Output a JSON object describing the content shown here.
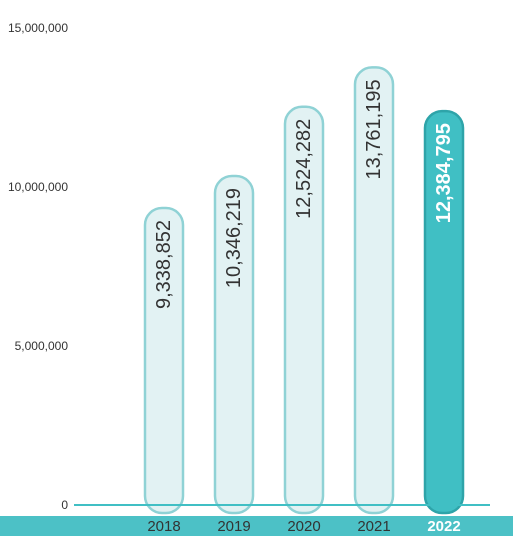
{
  "chart_data": {
    "type": "bar",
    "categories": [
      "2018",
      "2019",
      "2020",
      "2021",
      "2022"
    ],
    "values": [
      9338852,
      10346219,
      12524282,
      13761195,
      12384795
    ],
    "value_labels": [
      "9,338,852",
      "10,346,219",
      "12,524,282",
      "13,761,195",
      "12,384,795"
    ],
    "highlight_index": 4,
    "ylim": [
      0,
      15000000
    ],
    "yticks": [
      0,
      5000000,
      10000000,
      15000000
    ],
    "ytick_labels": [
      "0",
      "5,000,000",
      "10,000,000",
      "15,000,000"
    ],
    "grid": false,
    "colors": {
      "bar_fill": "#e2f2f3",
      "bar_stroke": "#8fd2d5",
      "highlight_fill": "#40bfc4",
      "highlight_stroke": "#2ea4a9",
      "category_band": "#4cc1c6",
      "axis": "#40bfc4"
    }
  }
}
